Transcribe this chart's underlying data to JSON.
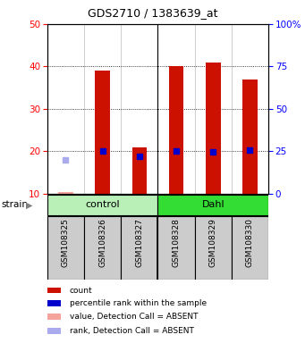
{
  "title": "GDS2710 / 1383639_at",
  "samples": [
    "GSM108325",
    "GSM108326",
    "GSM108327",
    "GSM108328",
    "GSM108329",
    "GSM108330"
  ],
  "groups": [
    {
      "name": "control",
      "color": "#b8f0b8",
      "samples": [
        0,
        1,
        2
      ]
    },
    {
      "name": "Dahl",
      "color": "#33dd33",
      "samples": [
        3,
        4,
        5
      ]
    }
  ],
  "bar_values": [
    10.5,
    39.0,
    21.0,
    40.0,
    41.0,
    37.0
  ],
  "bar_absent": [
    true,
    false,
    false,
    false,
    false,
    false
  ],
  "rank_values": [
    20.0,
    25.0,
    22.0,
    25.0,
    24.5,
    26.0
  ],
  "rank_absent": [
    true,
    false,
    false,
    false,
    false,
    false
  ],
  "ylim_left": [
    10,
    50
  ],
  "ylim_right": [
    0,
    100
  ],
  "yticks_left": [
    10,
    20,
    30,
    40,
    50
  ],
  "yticks_right": [
    0,
    25,
    50,
    75,
    100
  ],
  "ytick_labels_right": [
    "0",
    "25",
    "50",
    "75",
    "100%"
  ],
  "bar_color": "#cc1100",
  "bar_absent_color": "#f4a49a",
  "rank_color": "#0000cc",
  "rank_absent_color": "#aaaaee",
  "bar_width": 0.4,
  "sample_bg_color": "#cccccc",
  "strain_label": "strain",
  "legend_items": [
    {
      "color": "#cc1100",
      "label": "count"
    },
    {
      "color": "#0000cc",
      "label": "percentile rank within the sample"
    },
    {
      "color": "#f4a49a",
      "label": "value, Detection Call = ABSENT"
    },
    {
      "color": "#aaaaee",
      "label": "rank, Detection Call = ABSENT"
    }
  ]
}
